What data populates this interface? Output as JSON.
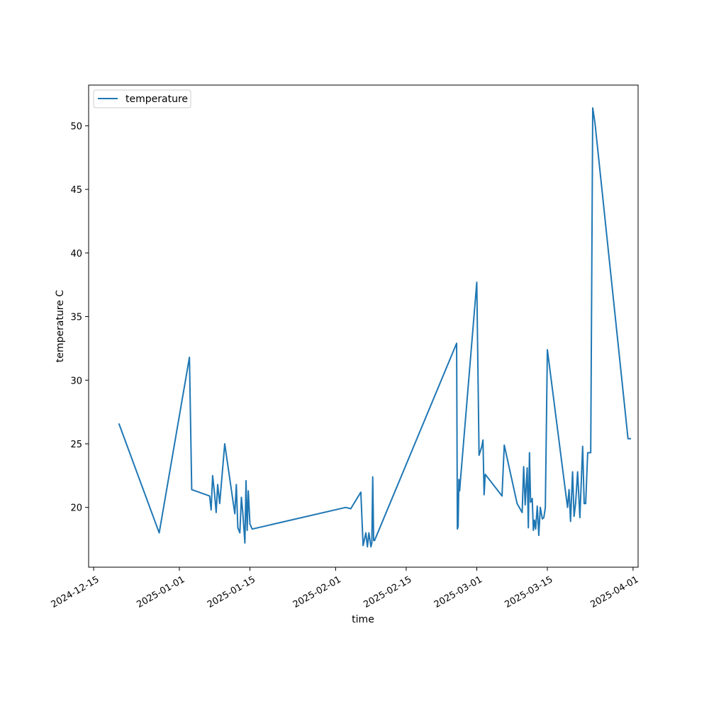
{
  "chart_data": {
    "type": "line",
    "title": "",
    "xlabel": "time",
    "ylabel": "temperature C",
    "x_type": "date",
    "xlim": [
      "2024-12-14",
      "2025-04-02"
    ],
    "ylim": [
      15.3,
      53.2
    ],
    "xticks": [
      "2024-12-15",
      "2025-01-01",
      "2025-01-15",
      "2025-02-01",
      "2025-02-15",
      "2025-03-01",
      "2025-03-15",
      "2025-04-01"
    ],
    "yticks": [
      20,
      25,
      30,
      35,
      40,
      45,
      50
    ],
    "grid": false,
    "legend_position": "upper left",
    "series": [
      {
        "name": "temperature",
        "color": "#1f77b4",
        "x": [
          "2024-12-20",
          "2024-12-28",
          "2025-01-03",
          "2025-01-03",
          "2025-01-07",
          "2025-01-07",
          "2025-01-07",
          "2025-01-08",
          "2025-01-08",
          "2025-01-08",
          "2025-01-09",
          "2025-01-10",
          "2025-01-12",
          "2025-01-12",
          "2025-01-12",
          "2025-01-13",
          "2025-01-13",
          "2025-01-13",
          "2025-01-14",
          "2025-01-14",
          "2025-01-14",
          "2025-01-14",
          "2025-01-15",
          "2025-01-15",
          "2025-02-03",
          "2025-02-04",
          "2025-02-06",
          "2025-02-06",
          "2025-02-07",
          "2025-02-07",
          "2025-02-07",
          "2025-02-08",
          "2025-02-08",
          "2025-02-08",
          "2025-02-08",
          "2025-02-08",
          "2025-02-25",
          "2025-02-25",
          "2025-02-25",
          "2025-02-25",
          "2025-02-25",
          "2025-02-25",
          "2025-03-01",
          "2025-03-01",
          "2025-03-02",
          "2025-03-02",
          "2025-03-02",
          "2025-03-02",
          "2025-03-06",
          "2025-03-06",
          "2025-03-09",
          "2025-03-10",
          "2025-03-10",
          "2025-03-10",
          "2025-03-11",
          "2025-03-11",
          "2025-03-11",
          "2025-03-11",
          "2025-03-12",
          "2025-03-12",
          "2025-03-12",
          "2025-03-12",
          "2025-03-13",
          "2025-03-13",
          "2025-03-13",
          "2025-03-14",
          "2025-03-14",
          "2025-03-14",
          "2025-03-15",
          "2025-03-19",
          "2025-03-19",
          "2025-03-19",
          "2025-03-20",
          "2025-03-20",
          "2025-03-20",
          "2025-03-21",
          "2025-03-21",
          "2025-03-22",
          "2025-03-22",
          "2025-03-22",
          "2025-03-23",
          "2025-03-23",
          "2025-03-23",
          "2025-03-24",
          "2025-03-24",
          "2025-03-31",
          "2025-03-31",
          "2025-03-31"
        ],
        "y": [
          26.6,
          18.0,
          31.8,
          21.4,
          20.9,
          19.8,
          22.5,
          21.0,
          19.6,
          21.8,
          20.3,
          25.0,
          19.5,
          21.8,
          18.4,
          18.0,
          20.8,
          19.5,
          17.2,
          22.1,
          18.2,
          21.3,
          18.7,
          18.3,
          20.0,
          19.9,
          21.2,
          17.0,
          18.0,
          16.9,
          18.0,
          16.9,
          17.2,
          22.4,
          17.4,
          17.4,
          32.9,
          18.3,
          18.5,
          22.2,
          21.3,
          22.1,
          37.7,
          24.1,
          24.8,
          25.3,
          21.0,
          22.6,
          20.9,
          24.9,
          20.3,
          19.6,
          23.2,
          20.2,
          23.1,
          18.4,
          24.3,
          20.4,
          20.7,
          18.2,
          19.0,
          18.3,
          20.1,
          17.8,
          20.0,
          19.1,
          19.2,
          20.0,
          32.4,
          20.0,
          21.4,
          18.9,
          22.8,
          19.3,
          20.3,
          22.8,
          19.2,
          24.8,
          20.3,
          20.3,
          24.3,
          24.3,
          24.3,
          51.4,
          50.2,
          25.4,
          25.4,
          25.4
        ]
      }
    ]
  }
}
